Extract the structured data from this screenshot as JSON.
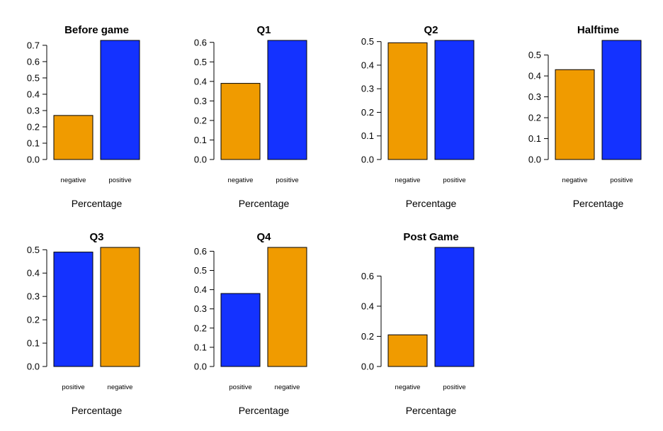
{
  "colors": {
    "orange": "#F09B00",
    "blue": "#1432FF"
  },
  "chart_data": [
    {
      "type": "bar",
      "title": "Before game",
      "xlabel": "Percentage",
      "ylabel": "",
      "categories": [
        "negative",
        "positive"
      ],
      "values": [
        0.27,
        0.73
      ],
      "colors": [
        "orange",
        "blue"
      ],
      "yticks": [
        "0.0",
        "0.1",
        "0.2",
        "0.3",
        "0.4",
        "0.5",
        "0.6",
        "0.7"
      ],
      "ylim": [
        0,
        0.73
      ]
    },
    {
      "type": "bar",
      "title": "Q1",
      "xlabel": "Percentage",
      "ylabel": "",
      "categories": [
        "negative",
        "positive"
      ],
      "values": [
        0.39,
        0.61
      ],
      "colors": [
        "orange",
        "blue"
      ],
      "yticks": [
        "0.0",
        "0.1",
        "0.2",
        "0.3",
        "0.4",
        "0.5",
        "0.6"
      ],
      "ylim": [
        0,
        0.61
      ]
    },
    {
      "type": "bar",
      "title": "Q2",
      "xlabel": "Percentage",
      "ylabel": "",
      "categories": [
        "negative",
        "positive"
      ],
      "values": [
        0.495,
        0.505
      ],
      "colors": [
        "orange",
        "blue"
      ],
      "yticks": [
        "0.0",
        "0.1",
        "0.2",
        "0.3",
        "0.4",
        "0.5"
      ],
      "ylim": [
        0,
        0.505
      ]
    },
    {
      "type": "bar",
      "title": "Halftime",
      "xlabel": "Percentage",
      "ylabel": "",
      "categories": [
        "negative",
        "positive"
      ],
      "values": [
        0.43,
        0.57
      ],
      "colors": [
        "orange",
        "blue"
      ],
      "yticks": [
        "0.0",
        "0.1",
        "0.2",
        "0.3",
        "0.4",
        "0.5"
      ],
      "ylim": [
        0,
        0.57
      ]
    },
    {
      "type": "bar",
      "title": "Q3",
      "xlabel": "Percentage",
      "ylabel": "",
      "categories": [
        "positive",
        "negative"
      ],
      "values": [
        0.49,
        0.51
      ],
      "colors": [
        "blue",
        "orange"
      ],
      "yticks": [
        "0.0",
        "0.1",
        "0.2",
        "0.3",
        "0.4",
        "0.5"
      ],
      "ylim": [
        0,
        0.51
      ]
    },
    {
      "type": "bar",
      "title": "Q4",
      "xlabel": "Percentage",
      "ylabel": "",
      "categories": [
        "positive",
        "negative"
      ],
      "values": [
        0.38,
        0.62
      ],
      "colors": [
        "blue",
        "orange"
      ],
      "yticks": [
        "0.0",
        "0.1",
        "0.2",
        "0.3",
        "0.4",
        "0.5",
        "0.6"
      ],
      "ylim": [
        0,
        0.62
      ]
    },
    {
      "type": "bar",
      "title": "Post Game",
      "xlabel": "Percentage",
      "ylabel": "",
      "categories": [
        "negative",
        "positive"
      ],
      "values": [
        0.21,
        0.79
      ],
      "colors": [
        "orange",
        "blue"
      ],
      "yticks": [
        "0.0",
        "0.2",
        "0.4",
        "0.6"
      ],
      "ylim": [
        0,
        0.79
      ]
    }
  ]
}
